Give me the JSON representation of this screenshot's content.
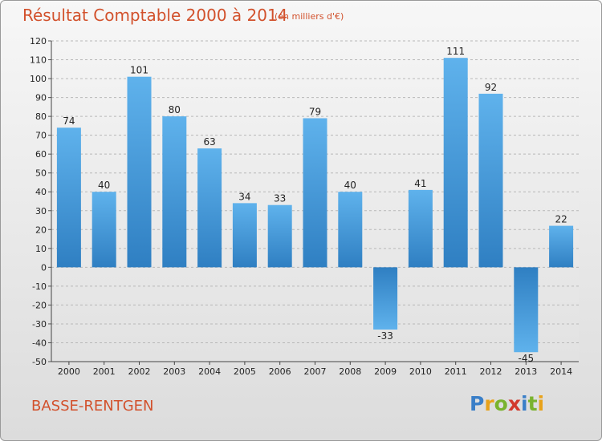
{
  "chart_data": {
    "type": "bar",
    "title": "Résultat Comptable 2000 à 2014",
    "subtitle": "(en milliers d'€)",
    "categories": [
      "2000",
      "2001",
      "2002",
      "2003",
      "2004",
      "2005",
      "2006",
      "2007",
      "2008",
      "2009",
      "2010",
      "2011",
      "2012",
      "2013",
      "2014"
    ],
    "values": [
      74,
      40,
      101,
      80,
      63,
      34,
      33,
      79,
      40,
      -33,
      41,
      111,
      92,
      -45,
      22
    ],
    "xlabel": "",
    "ylabel": "",
    "ylim": [
      -50,
      120
    ],
    "yticks": [
      120,
      110,
      100,
      90,
      80,
      70,
      60,
      50,
      40,
      30,
      20,
      10,
      0,
      -10,
      -20,
      -30,
      -40,
      -50
    ],
    "grid": true,
    "bar_color": "#4a9fdf"
  },
  "footer": {
    "commune": "BASSE-RENTGEN",
    "brand_letters": [
      {
        "char": "P",
        "color": "#3a7fc8"
      },
      {
        "char": "r",
        "color": "#e8a21b"
      },
      {
        "char": "o",
        "color": "#7ab32e"
      },
      {
        "char": "x",
        "color": "#d2392c"
      },
      {
        "char": "i",
        "color": "#3a7fc8"
      },
      {
        "char": "t",
        "color": "#7ab32e"
      },
      {
        "char": "i",
        "color": "#e8a21b"
      }
    ]
  }
}
